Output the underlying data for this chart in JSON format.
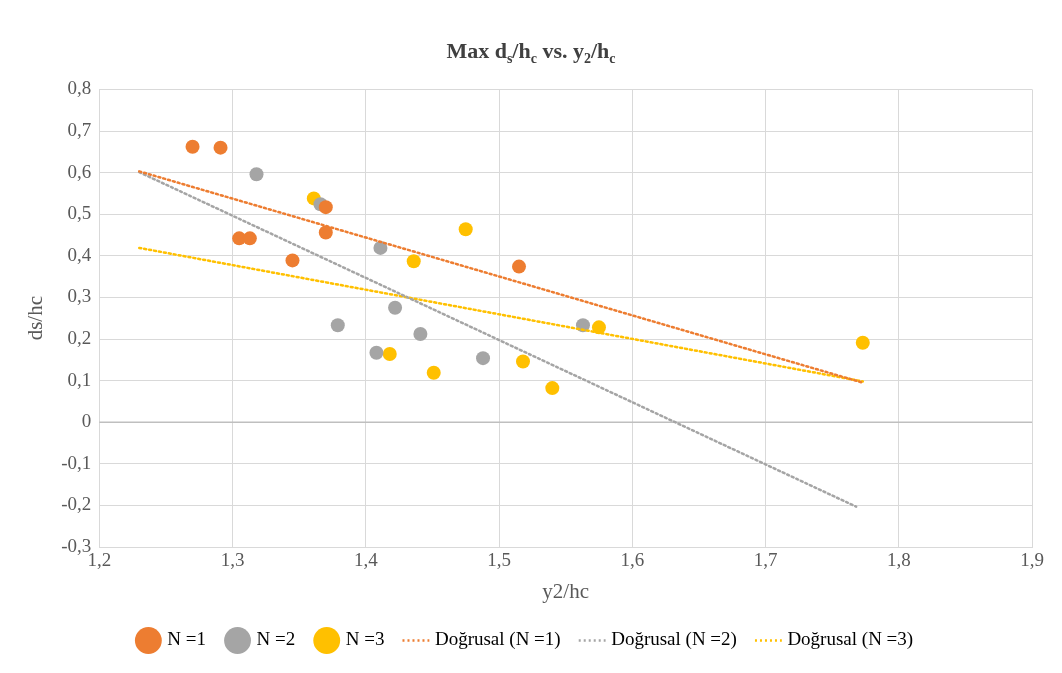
{
  "chart_data": {
    "type": "scatter",
    "title": "Max d$_{s}$/h$_{c}$ vs. y$_{2}$/h$_{c}$",
    "xlabel": "y2/hc",
    "ylabel": "ds/hc",
    "xlim": [
      1.2,
      1.9
    ],
    "xticks": [
      {
        "value": 1.2,
        "label": "1,2"
      },
      {
        "value": 1.3,
        "label": "1,3"
      },
      {
        "value": 1.4,
        "label": "1,4"
      },
      {
        "value": 1.5,
        "label": "1,5"
      },
      {
        "value": 1.6,
        "label": "1,6"
      },
      {
        "value": 1.7,
        "label": "1,7"
      },
      {
        "value": 1.8,
        "label": "1,8"
      },
      {
        "value": 1.9,
        "label": "1,9"
      }
    ],
    "ylim": [
      -0.3,
      0.8
    ],
    "yticks": [
      {
        "value": -0.3,
        "label": "-0,3"
      },
      {
        "value": -0.2,
        "label": "-0,2"
      },
      {
        "value": -0.1,
        "label": "-0,1"
      },
      0,
      {
        "value": 0.1,
        "label": "0,1"
      },
      {
        "value": 0.2,
        "label": "0,2"
      },
      {
        "value": 0.3,
        "label": "0,3"
      },
      {
        "value": 0.4,
        "label": "0,4"
      },
      {
        "value": 0.5,
        "label": "0,5"
      },
      {
        "value": 0.6,
        "label": "0,6"
      },
      {
        "value": 0.7,
        "label": "0,7"
      },
      {
        "value": 0.8,
        "label": "0,8"
      }
    ],
    "grid": true,
    "legend": "bottom",
    "marker": "circle",
    "series": [
      {
        "name": "N =1",
        "color": "#ed7d31",
        "x": [
          1.27,
          1.291,
          1.305,
          1.313,
          1.345,
          1.37,
          1.37,
          1.515
        ],
        "values": [
          0.662,
          0.66,
          0.442,
          0.442,
          0.389,
          0.517,
          0.456,
          0.374
        ]
      },
      {
        "name": "N =2",
        "color": "#a5a5a5",
        "x": [
          1.318,
          1.366,
          1.379,
          1.408,
          1.411,
          1.422,
          1.441,
          1.488,
          1.563
        ],
        "values": [
          0.596,
          0.524,
          0.233,
          0.167,
          0.419,
          0.275,
          0.212,
          0.154,
          0.233
        ]
      },
      {
        "name": "N =3",
        "color": "#ffc000",
        "x": [
          1.361,
          1.418,
          1.436,
          1.451,
          1.475,
          1.518,
          1.54,
          1.575,
          1.773
        ],
        "values": [
          0.538,
          0.164,
          0.387,
          0.119,
          0.464,
          0.146,
          0.082,
          0.228,
          0.191
        ]
      },
      {
        "name": "Doğrusal (N =1)",
        "type": "line",
        "line_style": "dotted",
        "marker": "none",
        "color": "#ed7d31",
        "x": [
          1.23,
          1.773
        ],
        "values": [
          0.603,
          0.095
        ]
      },
      {
        "name": "Doğrusal (N =2)",
        "type": "line",
        "line_style": "dotted",
        "marker": "none",
        "color": "#a5a5a5",
        "x": [
          1.23,
          1.768
        ],
        "values": [
          0.601,
          -0.203
        ]
      },
      {
        "name": "Doğrusal (N =3)",
        "type": "line",
        "line_style": "dotted",
        "marker": "none",
        "color": "#ffc000",
        "x": [
          1.23,
          1.773
        ],
        "values": [
          0.419,
          0.098
        ]
      }
    ]
  }
}
